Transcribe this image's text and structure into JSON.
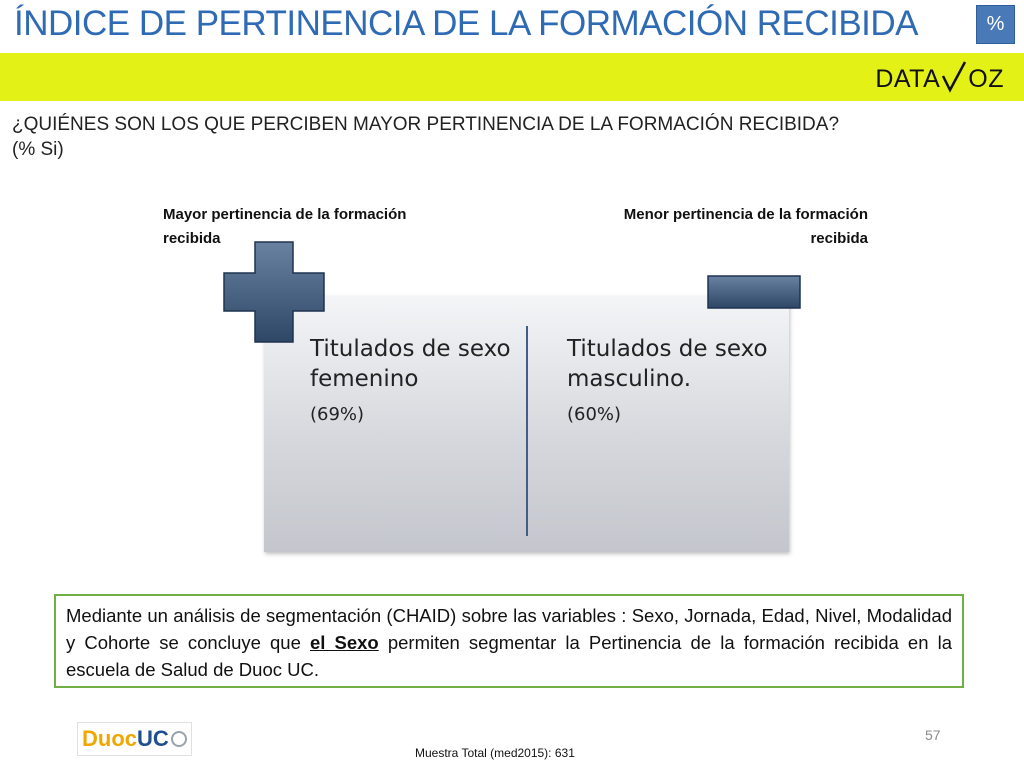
{
  "header": {
    "title": "ÍNDICE DE PERTINENCIA DE LA FORMACIÓN RECIBIDA",
    "badge": "%",
    "logo": {
      "left": "DATA",
      "right": "OZ"
    }
  },
  "question": {
    "line1": "¿QUIÉNES SON LOS QUE PERCIBEN MAYOR PERTINENCIA DE LA FORMACIÓN RECIBIDA?",
    "line2": "(% Si)"
  },
  "labels": {
    "more": "Mayor pertinencia de la formación recibida",
    "less": "Menor pertinencia de la formación recibida"
  },
  "panel": {
    "left": {
      "title": "Titulados de sexo femenino",
      "value": "(69%)"
    },
    "right": {
      "title": "Titulados de sexo masculino.",
      "value": "(60%)"
    }
  },
  "conclusion": {
    "before": "Mediante un análisis de segmentación (CHAID) sobre las variables : Sexo, Jornada, Edad, Nivel, Modalidad y Cohorte se concluye que ",
    "keyword": "el Sexo",
    "after": " permiten segmentar la Pertinencia de la formación recibida en la escuela de Salud de Duoc UC."
  },
  "footer": {
    "page_number": "57",
    "note": "Muestra Total (med2015): 631",
    "brand_a": "Duoc",
    "brand_b": "UC"
  },
  "colors": {
    "title": "#2e6bb4",
    "band": "#e3f117",
    "badge": "#4a79b8",
    "box_border": "#6faf45",
    "symbol": "#3f5878"
  }
}
